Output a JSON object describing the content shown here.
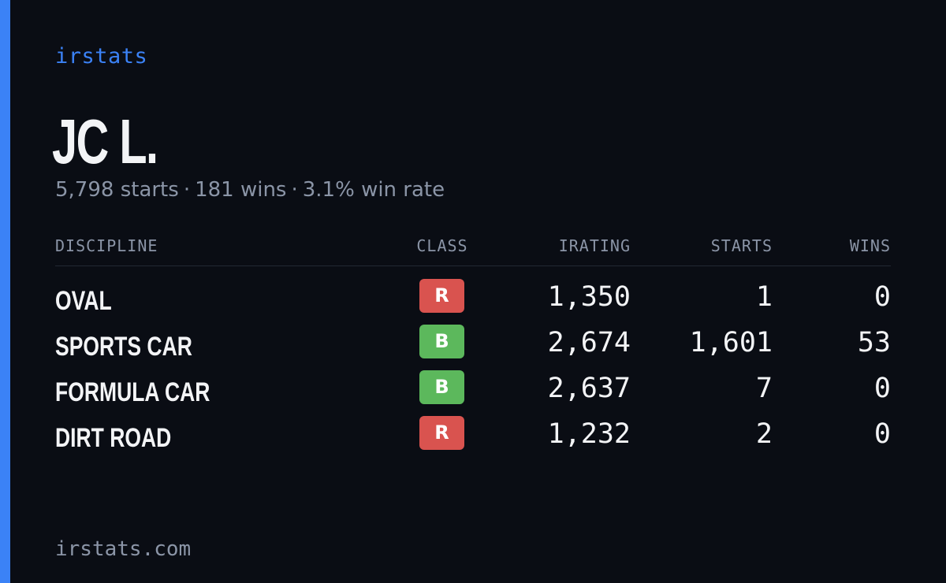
{
  "brand": "irstats",
  "driver": {
    "name": "JC L."
  },
  "summary": {
    "starts": "5,798 starts",
    "wins": "181 wins",
    "win_rate": "3.1% win rate",
    "separator": "·"
  },
  "table": {
    "headers": {
      "discipline": "DISCIPLINE",
      "class": "CLASS",
      "irating": "IRATING",
      "starts": "STARTS",
      "wins": "WINS"
    },
    "rows": [
      {
        "discipline": "OVAL",
        "class": "R",
        "class_color": "#d9534f",
        "irating": "1,350",
        "starts": "1",
        "wins": "0"
      },
      {
        "discipline": "SPORTS CAR",
        "class": "B",
        "class_color": "#5cb85c",
        "irating": "2,674",
        "starts": "1,601",
        "wins": "53"
      },
      {
        "discipline": "FORMULA CAR",
        "class": "B",
        "class_color": "#5cb85c",
        "irating": "2,637",
        "starts": "7",
        "wins": "0"
      },
      {
        "discipline": "DIRT ROAD",
        "class": "R",
        "class_color": "#d9534f",
        "irating": "1,232",
        "starts": "2",
        "wins": "0"
      }
    ]
  },
  "footer": {
    "url": "irstats.com"
  },
  "colors": {
    "accent": "#3b82f6",
    "background": "#0a0d14",
    "class_r": "#d9534f",
    "class_b": "#5cb85c"
  }
}
